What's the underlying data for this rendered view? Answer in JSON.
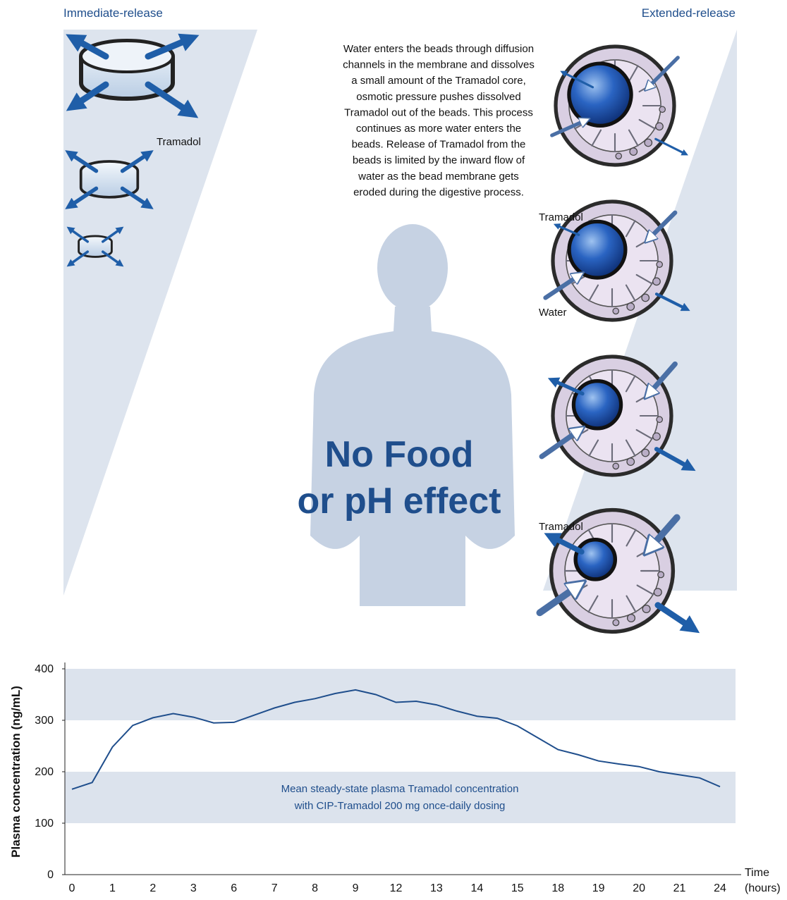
{
  "illustration": {
    "left_title": "Immediate-release",
    "right_title": "Extended-release",
    "left_label": "Tramadol",
    "description": [
      "Water enters the beads through diffusion",
      "channels in the membrane and dissolves",
      "a small amount of the Tramadol core,",
      "osmotic pressure pushes dissolved",
      "Tramadol out of the beads. This process",
      "continues as more water enters the",
      "beads. Release of Tramadol from the",
      "beads is limited by the inward flow of",
      "water as the bead membrane gets",
      "eroded during the digestive process."
    ],
    "bead_labels": [
      "Tramadol",
      "Water",
      "Tramadol"
    ],
    "headline": [
      "No Food",
      "or pH effect"
    ]
  },
  "chart_data": {
    "type": "line",
    "ylabel": "Plasma concentration (ng/mL)",
    "xlabel": [
      "Time",
      "(hours)"
    ],
    "annotation": [
      "Mean steady-state plasma Tramadol concentration",
      "with CIP-Tramadol 200 mg once-daily dosing"
    ],
    "categories": [
      "0",
      null,
      "1",
      null,
      "2",
      null,
      "3",
      null,
      "6",
      null,
      "7",
      null,
      "8",
      null,
      "9",
      null,
      "12",
      null,
      "13",
      null,
      "14",
      null,
      "15",
      null,
      "18",
      null,
      "19",
      null,
      "20",
      null,
      "21",
      null,
      "24"
    ],
    "series": [
      {
        "name": "Mean plasma concentration",
        "color": "#1f4e8c",
        "values": [
          166,
          179,
          248,
          290,
          305,
          313,
          306,
          295,
          296,
          310,
          324,
          335,
          342,
          352,
          359,
          350,
          335,
          337,
          330,
          318,
          308,
          304,
          289,
          266,
          243,
          233,
          221,
          215,
          210,
          200,
          194,
          188,
          171
        ]
      }
    ],
    "bands": [
      {
        "from": 100,
        "to": 200
      },
      {
        "from": 300,
        "to": 400
      }
    ],
    "band_color": "#dce3ed",
    "ylim": [
      0,
      400
    ],
    "yticks": [
      0,
      100,
      200,
      300,
      400
    ]
  }
}
